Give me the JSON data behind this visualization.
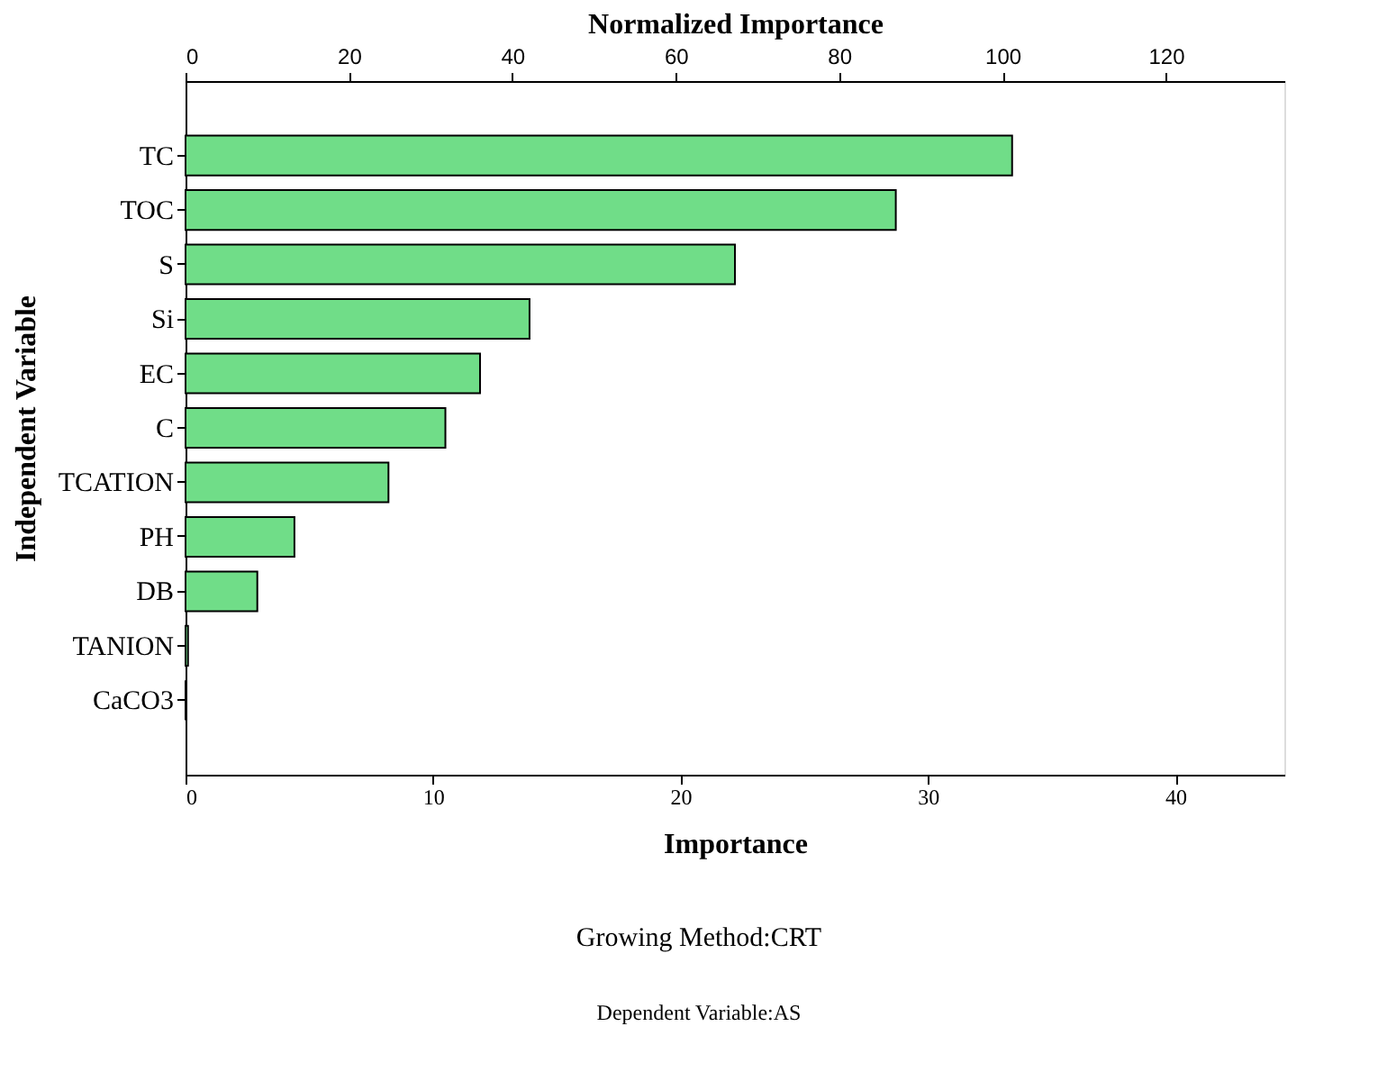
{
  "chart_data": {
    "type": "bar",
    "orientation": "horizontal",
    "categories": [
      "TC",
      "TOC",
      "S",
      "Si",
      "EC",
      "C",
      "TCATION",
      "PH",
      "DB",
      "TANION",
      "CaCO3"
    ],
    "values": [
      33.4,
      28.7,
      22.2,
      13.9,
      11.9,
      10.5,
      8.2,
      4.4,
      2.9,
      0.1,
      0
    ],
    "color": "#70dd88",
    "xlim": [
      0,
      44.4
    ],
    "xticks": [
      0,
      10,
      20,
      30,
      40
    ],
    "x2lim": [
      0,
      134.5
    ],
    "x2ticks": [
      0,
      20,
      40,
      60,
      80,
      100,
      120
    ],
    "xlabel": "Importance",
    "x2label": "Normalized Importance",
    "ylabel": "Independent Variable",
    "annotations": [
      "Growing Method:CRT",
      "Dependent Variable:AS"
    ],
    "grid": false
  }
}
